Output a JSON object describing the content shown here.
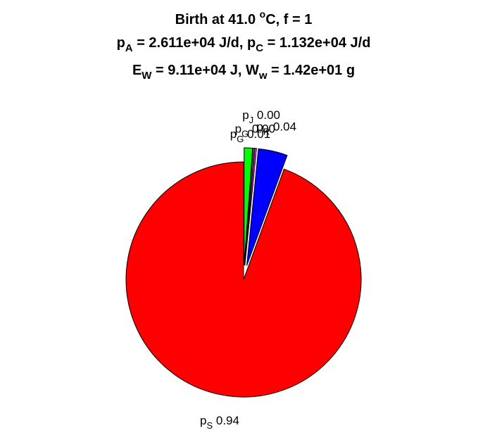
{
  "chart_data": {
    "type": "pie",
    "title": {
      "line1": {
        "text": "Birth at 41.0 ",
        "sup": "o",
        "rest": "C, f = 1"
      },
      "line2": [
        {
          "base": "p",
          "sub": "A",
          "text": " = 2.611e+04 J/d, "
        },
        {
          "base": "p",
          "sub": "C",
          "text": " = 1.132e+04 J/d"
        }
      ],
      "line3": [
        {
          "base": "E",
          "sub": "W",
          "text": " = 9.11e+04 J, "
        },
        {
          "base": "W",
          "sub": "w",
          "text": " = 1.42e+01 g"
        }
      ]
    },
    "slices": [
      {
        "name": "pS",
        "base": "p",
        "sub": "S",
        "value_label": "0.94",
        "fraction": 0.9441,
        "color": "#ff0000",
        "exploded": false
      },
      {
        "name": "pR",
        "base": "p",
        "sub": "R",
        "value_label": "0.04",
        "fraction": 0.0401,
        "color": "#0000ff",
        "exploded": true
      },
      {
        "name": "pJ",
        "base": "p",
        "sub": "J",
        "value_label": "0.00",
        "fraction": 0.0025,
        "color": "#ff00ff",
        "exploded": true
      },
      {
        "name": "pG2",
        "base": "p",
        "sub": "G",
        "value_label": "0.00",
        "fraction": 0.0018,
        "color": "#00ff00",
        "exploded": true
      },
      {
        "name": "pG",
        "base": "p",
        "sub": "G",
        "value_label": "0.01",
        "fraction": 0.0115,
        "color": "#00ff00",
        "exploded": true
      }
    ]
  }
}
